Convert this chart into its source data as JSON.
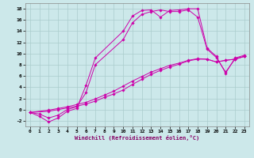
{
  "xlabel": "Windchill (Refroidissement éolien,°C)",
  "background_color": "#cce8ea",
  "grid_color": "#aacccc",
  "line_color": "#cc00aa",
  "xlim": [
    -0.5,
    23.5
  ],
  "ylim": [
    -3,
    19
  ],
  "xticks": [
    0,
    1,
    2,
    3,
    4,
    5,
    6,
    7,
    8,
    9,
    10,
    11,
    12,
    13,
    14,
    15,
    16,
    17,
    18,
    19,
    20,
    21,
    22,
    23
  ],
  "yticks": [
    -2,
    0,
    2,
    4,
    6,
    8,
    10,
    12,
    14,
    16,
    18
  ],
  "series": [
    {
      "x": [
        0,
        1,
        2,
        3,
        4,
        5,
        6,
        7,
        10,
        11,
        12,
        13,
        14,
        15,
        16,
        17,
        18,
        19,
        20,
        21,
        22,
        23
      ],
      "y": [
        -0.5,
        -1.2,
        -2.2,
        -1.5,
        -0.3,
        0.2,
        4.3,
        9.2,
        14.0,
        16.7,
        17.7,
        17.8,
        16.5,
        17.7,
        17.8,
        18.0,
        18.0,
        11.0,
        9.5,
        6.5,
        9.2,
        9.7
      ]
    },
    {
      "x": [
        0,
        1,
        2,
        3,
        4,
        5,
        6,
        7,
        10,
        11,
        12,
        13,
        14,
        15,
        16,
        17,
        18,
        19,
        20,
        21,
        22,
        23
      ],
      "y": [
        -0.5,
        -0.8,
        -1.5,
        -1.0,
        0.0,
        0.5,
        3.0,
        8.0,
        12.5,
        15.5,
        17.0,
        17.5,
        17.8,
        17.5,
        17.5,
        17.8,
        16.5,
        10.8,
        9.3,
        6.7,
        9.0,
        9.5
      ]
    },
    {
      "x": [
        0,
        2,
        3,
        4,
        5,
        6,
        7,
        8,
        9,
        10,
        11,
        12,
        13,
        14,
        15,
        16,
        17,
        18,
        19,
        20,
        21,
        22,
        23
      ],
      "y": [
        -0.5,
        -0.3,
        0.0,
        0.3,
        0.6,
        1.0,
        1.5,
        2.2,
        2.8,
        3.5,
        4.5,
        5.4,
        6.3,
        7.0,
        7.6,
        8.1,
        8.7,
        9.0,
        9.0,
        8.5,
        8.8,
        9.0,
        9.5
      ]
    },
    {
      "x": [
        0,
        2,
        3,
        4,
        5,
        6,
        7,
        8,
        9,
        10,
        11,
        12,
        13,
        14,
        15,
        16,
        17,
        18,
        19,
        20,
        21,
        22,
        23
      ],
      "y": [
        -0.5,
        -0.1,
        0.2,
        0.5,
        0.9,
        1.3,
        1.9,
        2.6,
        3.3,
        4.2,
        5.1,
        5.9,
        6.7,
        7.3,
        7.9,
        8.3,
        8.8,
        9.1,
        9.0,
        8.5,
        8.8,
        9.0,
        9.5
      ]
    }
  ]
}
